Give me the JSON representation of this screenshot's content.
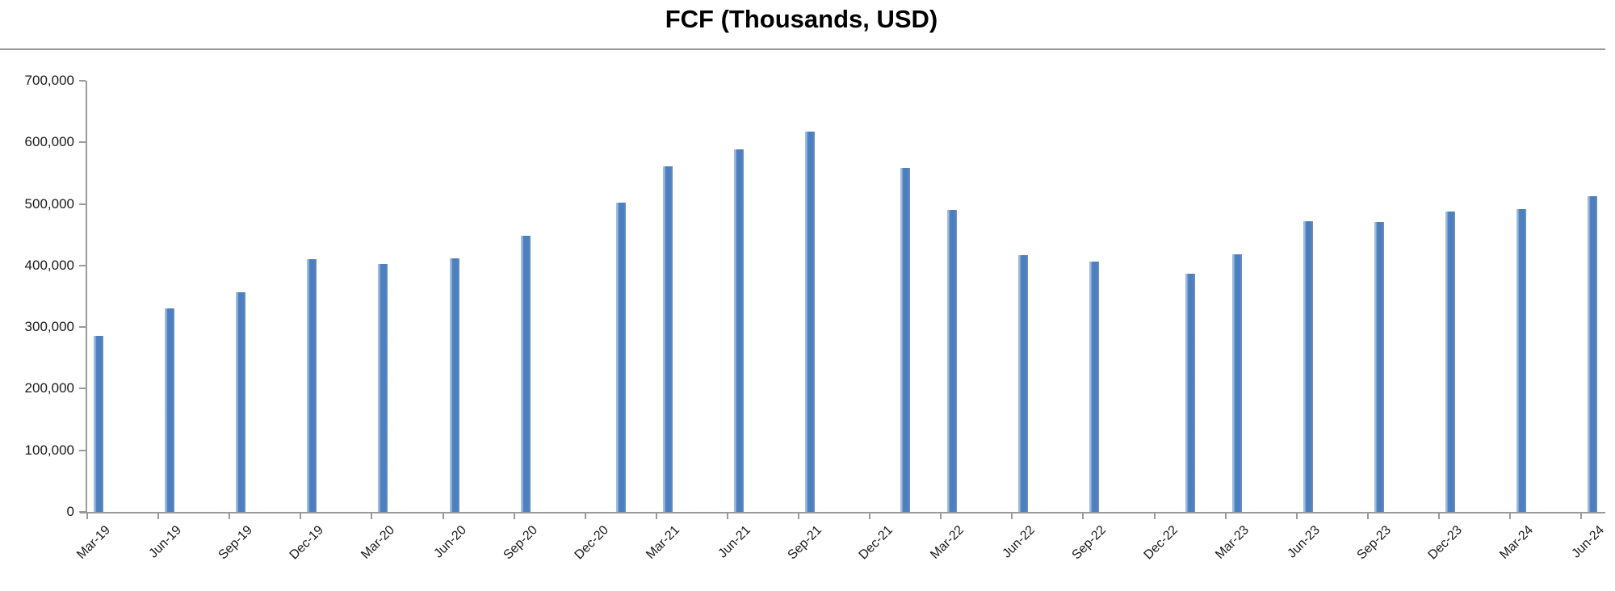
{
  "title": "FCF (Thousands, USD)",
  "chart_data": {
    "type": "bar",
    "title": "FCF (Thousands, USD)",
    "xlabel": "",
    "ylabel": "",
    "categories": [
      "Mar-19",
      "Jun-19",
      "Sep-19",
      "Dec-19",
      "Mar-20",
      "Jun-20",
      "Sep-20",
      "Dec-20",
      "Mar-21",
      "Jun-21",
      "Sep-21",
      "Dec-21",
      "Mar-22",
      "Jun-22",
      "Sep-22",
      "Dec-22",
      "Mar-23",
      "Jun-23",
      "Sep-23",
      "Dec-23",
      "Mar-24",
      "Jun-24"
    ],
    "values": [
      286000,
      330000,
      356000,
      410000,
      402000,
      412000,
      448000,
      502000,
      561000,
      588000,
      618000,
      559000,
      490000,
      417000,
      406000,
      387000,
      418000,
      472000,
      471000,
      487000,
      492000,
      512000
    ],
    "ylim": [
      0,
      700000
    ],
    "ytick_step": 100000,
    "ytick_labels": [
      "0",
      "100,000",
      "200,000",
      "300,000",
      "400,000",
      "500,000",
      "600,000",
      "700,000"
    ],
    "grid": false,
    "legend": "none",
    "bar_color": "#4d7fbe",
    "bar_edge_highlight": "#9fbcdf",
    "axis_color": "#9a9a9a",
    "text_color": "#1a1a1a",
    "late_offset_categories": [
      "Dec-20",
      "Dec-21",
      "Dec-22"
    ]
  }
}
